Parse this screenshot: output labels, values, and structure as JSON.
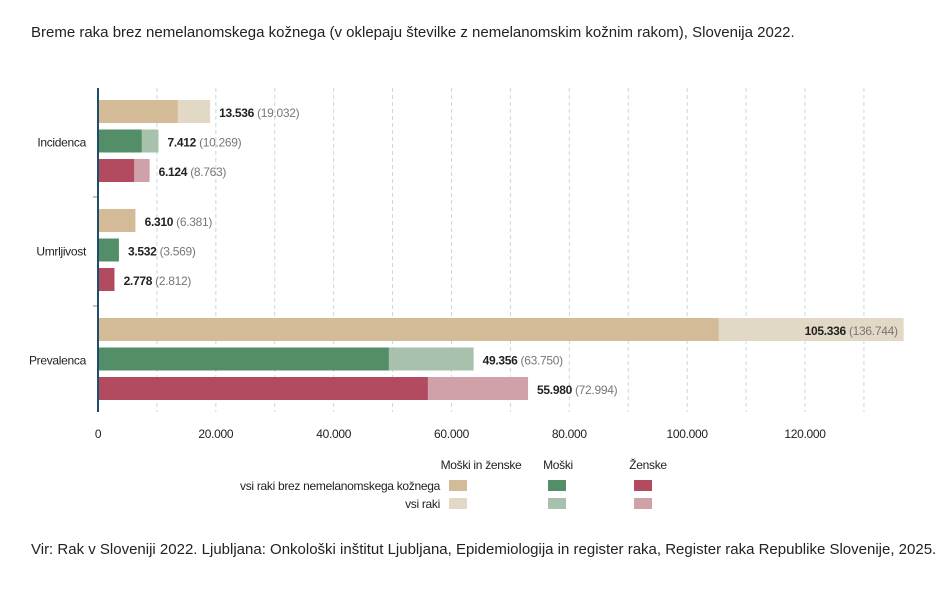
{
  "title": "Breme raka brez nemelanomskega kožnega (v oklepaju številke z nemelanomskim kožnim rakom), Slovenija 2022.",
  "source": "Vir: Rak v Sloveniji 2022. Ljubljana: Onkološki inštitut Ljubljana, Epidemiologija in register raka, Register raka Republike Slovenije, 2025.",
  "chart_data": {
    "type": "bar",
    "orientation": "horizontal",
    "categories": [
      "Incidenca",
      "Umrljivost",
      "Prevalenca"
    ],
    "series": [
      {
        "name": "Moški in ženske",
        "without_nmsc": [
          13536,
          6310,
          105336
        ],
        "all_cancers": [
          19032,
          6381,
          136744
        ],
        "labels": [
          "13.536",
          "6.310",
          "105.336"
        ],
        "labels_all": [
          "(19.032)",
          "(6.381)",
          "(136.744)"
        ]
      },
      {
        "name": "Moški",
        "without_nmsc": [
          7412,
          3532,
          49356
        ],
        "all_cancers": [
          10269,
          3569,
          63750
        ],
        "labels": [
          "7.412",
          "3.532",
          "49.356"
        ],
        "labels_all": [
          "(10.269)",
          "(3.569)",
          "(63.750)"
        ]
      },
      {
        "name": "Ženske",
        "without_nmsc": [
          6124,
          2778,
          55980
        ],
        "all_cancers": [
          8763,
          2812,
          72994
        ],
        "labels": [
          "6.124",
          "2.778",
          "55.980"
        ],
        "labels_all": [
          "(8.763)",
          "(2.812)",
          "(72.994)"
        ]
      }
    ],
    "xlim": [
      0,
      136744
    ],
    "xticks": [
      0,
      20000,
      40000,
      60000,
      80000,
      100000,
      120000
    ],
    "xtick_labels": [
      "0",
      "20.000",
      "40.000",
      "60.000",
      "80.000",
      "100.000",
      "120.000"
    ],
    "grid": "vertical dashed every 10.000",
    "legend": {
      "placement": "bottom",
      "columns": [
        "Moški in ženske",
        "Moški",
        "Ženske"
      ],
      "rows": [
        "vsi raki brez nemelanomskega kožnega",
        "vsi raki"
      ]
    },
    "colors": {
      "dark": [
        "#d3bb98",
        "#548e68",
        "#b34b60"
      ],
      "light": [
        "#e2d8c6",
        "#a7c1ac",
        "#d0a1a9"
      ]
    }
  }
}
